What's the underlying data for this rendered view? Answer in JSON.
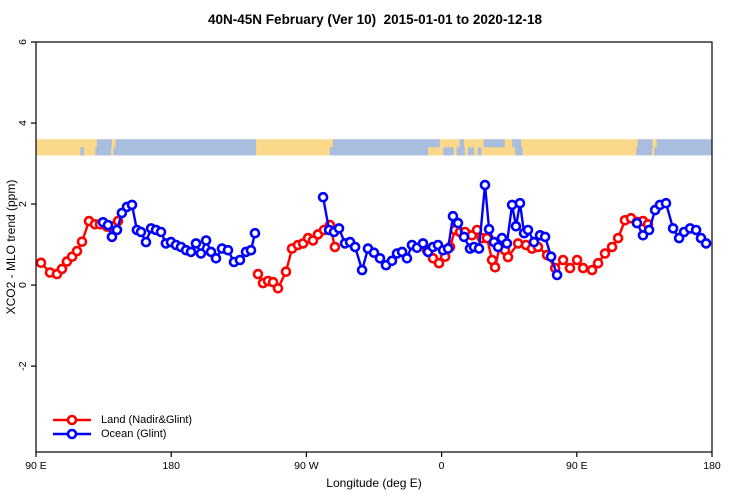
{
  "title": "40N-45N February (Ver 10)  2015-01-01 to 2020-12-18",
  "colors": {
    "land_series": "#FF0000",
    "ocean_series": "#0000FF",
    "strip_land": "#FCD98A",
    "strip_ocean": "#A9BDDE",
    "axis": "#000000",
    "background": "#FFFFFF"
  },
  "chart_data": {
    "type": "line",
    "title": "40N-45N February (Ver 10)  2015-01-01 to 2020-12-18",
    "xlabel": "Longitude (deg E)",
    "ylabel": "XCO2 - MLO trend (ppm)",
    "grid": false,
    "legend_position": "bottom-left-inside",
    "x_axis": {
      "min": 90,
      "max": 540,
      "note": "longitude axis wraps eastward from 90E through 180, 90W, 0, 90E to 180",
      "ticks": [
        {
          "value": 90,
          "label": "90 E"
        },
        {
          "value": 180,
          "label": "180"
        },
        {
          "value": 270,
          "label": "90 W"
        },
        {
          "value": 360,
          "label": "0"
        },
        {
          "value": 450,
          "label": "90 E"
        },
        {
          "value": 540,
          "label": "180"
        }
      ]
    },
    "y_axis": {
      "min": -4.12,
      "max": 6.0,
      "ticks": [
        {
          "value": -2,
          "label": "-2"
        },
        {
          "value": 0,
          "label": "0"
        },
        {
          "value": 2,
          "label": "2"
        },
        {
          "value": 4,
          "label": "4"
        },
        {
          "value": 6,
          "label": "6"
        }
      ]
    },
    "map_strip": {
      "description": "land/ocean longitude strip for the 40N-45N band",
      "y_top": 3.6,
      "y_mid": 3.4,
      "y_bottom": 3.2,
      "rows": [
        {
          "name": "45N",
          "segments": [
            [
              90,
              130.5,
              "land"
            ],
            [
              130.5,
              140.5,
              "ocean"
            ],
            [
              140.5,
              143,
              "land"
            ],
            [
              143,
              236.5,
              "ocean"
            ],
            [
              236.5,
              287.5,
              "land"
            ],
            [
              287.5,
              358.8,
              "ocean"
            ],
            [
              358.8,
              372,
              "land"
            ],
            [
              372,
              375,
              "ocean"
            ],
            [
              375,
              388,
              "land"
            ],
            [
              388,
              402,
              "ocean"
            ],
            [
              402,
              407,
              "land"
            ],
            [
              407,
              413,
              "ocean"
            ],
            [
              413,
              490.5,
              "land"
            ],
            [
              490.5,
              500.5,
              "ocean"
            ],
            [
              500.5,
              503,
              "land"
            ],
            [
              503,
              540,
              "ocean"
            ]
          ]
        },
        {
          "name": "40N",
          "segments": [
            [
              90,
              119.5,
              "land"
            ],
            [
              119.5,
              122,
              "ocean"
            ],
            [
              122,
              129.5,
              "land"
            ],
            [
              129.5,
              140,
              "ocean"
            ],
            [
              140,
              141.5,
              "land"
            ],
            [
              141.5,
              236.5,
              "ocean"
            ],
            [
              236.5,
              285.5,
              "land"
            ],
            [
              285.5,
              351,
              "ocean"
            ],
            [
              351,
              361,
              "land"
            ],
            [
              361,
              368,
              "ocean"
            ],
            [
              368,
              370,
              "land"
            ],
            [
              370,
              375.5,
              "ocean"
            ],
            [
              375.5,
              377.5,
              "land"
            ],
            [
              377.5,
              381.5,
              "ocean"
            ],
            [
              381.5,
              384,
              "land"
            ],
            [
              384,
              386.5,
              "ocean"
            ],
            [
              386.5,
              409,
              "land"
            ],
            [
              409,
              414,
              "ocean"
            ],
            [
              414,
              489.5,
              "land"
            ],
            [
              489.5,
              500,
              "ocean"
            ],
            [
              500,
              501.5,
              "land"
            ],
            [
              501.5,
              540,
              "ocean"
            ]
          ]
        }
      ]
    },
    "series": [
      {
        "name": "Land (Nadir&Glint)",
        "color": "#FF0000",
        "marker": "open-circle",
        "segments": [
          [
            [
              93.3,
              0.55
            ],
            [
              99.3,
              0.31
            ],
            [
              104.0,
              0.27
            ],
            [
              107.3,
              0.4
            ],
            [
              110.6,
              0.58
            ],
            [
              114.0,
              0.7
            ],
            [
              117.3,
              0.84
            ],
            [
              120.6,
              1.07
            ],
            [
              125.3,
              1.58
            ],
            [
              129.3,
              1.5
            ],
            [
              132.6,
              1.5
            ],
            [
              137.3,
              1.44
            ],
            [
              141.3,
              1.45
            ],
            [
              144.6,
              1.58
            ]
          ],
          [
            [
              237.8,
              0.27
            ],
            [
              241.1,
              0.05
            ],
            [
              244.5,
              0.1
            ],
            [
              247.8,
              0.07
            ],
            [
              251.1,
              -0.08
            ],
            [
              256.4,
              0.33
            ],
            [
              260.4,
              0.9
            ],
            [
              264.4,
              0.99
            ],
            [
              267.8,
              1.03
            ],
            [
              271.1,
              1.16
            ],
            [
              274.4,
              1.1
            ],
            [
              277.7,
              1.25
            ],
            [
              281.7,
              1.36
            ],
            [
              285.7,
              1.48
            ],
            [
              289.0,
              0.94
            ]
          ],
          [
            [
              350.3,
              0.86
            ],
            [
              354.3,
              0.66
            ],
            [
              358.3,
              0.54
            ],
            [
              362.3,
              0.7
            ],
            [
              365.6,
              0.94
            ],
            [
              368.9,
              1.36
            ],
            [
              372.3,
              1.31
            ],
            [
              375.6,
              1.31
            ],
            [
              380.2,
              1.23
            ],
            [
              383.6,
              1.36
            ],
            [
              386.9,
              1.16
            ],
            [
              390.2,
              1.16
            ],
            [
              393.6,
              0.62
            ],
            [
              395.6,
              0.44
            ],
            [
              398.9,
              0.99
            ],
            [
              402.2,
              0.86
            ],
            [
              404.2,
              0.69
            ],
            [
              410.9,
              1.03
            ],
            [
              416.2,
              0.99
            ],
            [
              420.2,
              0.9
            ],
            [
              424.2,
              0.94
            ],
            [
              430.2,
              0.74
            ],
            [
              435.6,
              0.42
            ],
            [
              440.9,
              0.62
            ],
            [
              445.5,
              0.42
            ],
            [
              450.2,
              0.62
            ],
            [
              454.2,
              0.42
            ],
            [
              460.2,
              0.37
            ],
            [
              464.2,
              0.54
            ],
            [
              468.8,
              0.78
            ],
            [
              473.5,
              0.94
            ],
            [
              477.5,
              1.16
            ],
            [
              482.1,
              1.6
            ],
            [
              486.1,
              1.65
            ],
            [
              490.1,
              1.56
            ],
            [
              494.1,
              1.58
            ],
            [
              497.4,
              1.5
            ]
          ]
        ]
      },
      {
        "name": "Ocean (Glint)",
        "color": "#0000FF",
        "marker": "open-circle",
        "segments": [
          [
            [
              134.6,
              1.55
            ],
            [
              137.9,
              1.48
            ],
            [
              140.6,
              1.19
            ],
            [
              143.9,
              1.36
            ],
            [
              147.2,
              1.78
            ],
            [
              150.6,
              1.93
            ],
            [
              153.9,
              1.98
            ],
            [
              157.2,
              1.36
            ],
            [
              159.9,
              1.31
            ],
            [
              163.2,
              1.06
            ],
            [
              166.6,
              1.4
            ],
            [
              169.9,
              1.36
            ],
            [
              173.2,
              1.31
            ],
            [
              176.5,
              1.03
            ],
            [
              179.9,
              1.06
            ],
            [
              183.2,
              0.99
            ],
            [
              186.5,
              0.94
            ],
            [
              189.9,
              0.86
            ],
            [
              193.2,
              0.82
            ],
            [
              196.5,
              1.03
            ],
            [
              199.8,
              0.78
            ],
            [
              203.2,
              1.1
            ],
            [
              206.5,
              0.82
            ],
            [
              209.8,
              0.66
            ],
            [
              213.8,
              0.9
            ],
            [
              217.8,
              0.86
            ],
            [
              221.8,
              0.57
            ],
            [
              225.8,
              0.62
            ],
            [
              229.8,
              0.82
            ],
            [
              233.1,
              0.86
            ],
            [
              235.8,
              1.28
            ]
          ],
          [
            [
              281.1,
              2.17
            ],
            [
              285.1,
              1.36
            ],
            [
              288.4,
              1.31
            ],
            [
              291.7,
              1.4
            ],
            [
              295.7,
              1.03
            ],
            [
              299.1,
              1.06
            ],
            [
              302.4,
              0.94
            ],
            [
              307.1,
              0.37
            ],
            [
              311.0,
              0.9
            ],
            [
              315.0,
              0.8
            ],
            [
              319.0,
              0.66
            ],
            [
              323.0,
              0.49
            ],
            [
              327.0,
              0.6
            ],
            [
              330.3,
              0.78
            ],
            [
              333.7,
              0.82
            ],
            [
              337.0,
              0.66
            ],
            [
              340.3,
              0.99
            ],
            [
              343.6,
              0.92
            ],
            [
              347.6,
              1.03
            ],
            [
              351.0,
              0.82
            ],
            [
              354.3,
              0.94
            ],
            [
              357.6,
              0.99
            ],
            [
              361.0,
              0.86
            ],
            [
              364.3,
              0.9
            ],
            [
              367.6,
              1.7
            ],
            [
              370.9,
              1.53
            ],
            [
              374.9,
              1.19
            ],
            [
              378.9,
              0.9
            ],
            [
              381.6,
              0.94
            ],
            [
              384.9,
              0.9
            ],
            [
              388.9,
              2.47
            ],
            [
              391.6,
              1.38
            ],
            [
              394.9,
              1.06
            ],
            [
              397.6,
              0.94
            ],
            [
              400.2,
              1.16
            ],
            [
              403.5,
              1.03
            ],
            [
              406.9,
              1.98
            ],
            [
              409.5,
              1.45
            ],
            [
              412.2,
              2.02
            ],
            [
              414.9,
              1.28
            ],
            [
              417.5,
              1.36
            ],
            [
              421.5,
              1.06
            ],
            [
              425.6,
              1.23
            ],
            [
              428.9,
              1.19
            ],
            [
              432.9,
              0.7
            ],
            [
              436.9,
              0.25
            ]
          ],
          [
            [
              490.1,
              1.53
            ],
            [
              494.1,
              1.23
            ],
            [
              498.1,
              1.36
            ],
            [
              502.1,
              1.85
            ],
            [
              505.4,
              1.98
            ],
            [
              509.4,
              2.02
            ],
            [
              514.1,
              1.4
            ],
            [
              518.1,
              1.16
            ],
            [
              521.4,
              1.31
            ],
            [
              525.4,
              1.4
            ],
            [
              529.4,
              1.36
            ],
            [
              532.7,
              1.16
            ],
            [
              536.1,
              1.03
            ]
          ]
        ]
      }
    ]
  }
}
